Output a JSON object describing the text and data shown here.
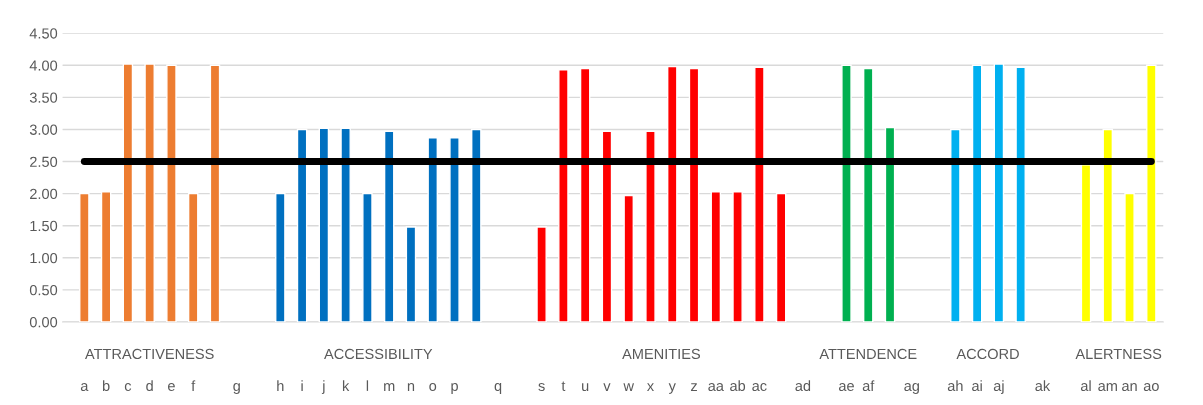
{
  "chart_data": {
    "type": "bar",
    "categories": [
      "a",
      "b",
      "c",
      "d",
      "e",
      "f",
      null,
      "g",
      null,
      "h",
      "i",
      "j",
      "k",
      "l",
      "m",
      "n",
      "o",
      "p",
      null,
      "q",
      null,
      "s",
      "t",
      "u",
      "v",
      "w",
      "x",
      "y",
      "z",
      "aa",
      "ab",
      "ac",
      null,
      "ad",
      null,
      "ae",
      "af",
      null,
      "ag",
      null,
      "ah",
      "ai",
      "aj",
      null,
      "ak",
      null,
      "al",
      "am",
      "an",
      "ao"
    ],
    "series": [
      {
        "name": "ATTRACTIVENESS",
        "color": "#ed7d31",
        "values": [
          2.0,
          2.03,
          4.02,
          4.02,
          4.0,
          2.0,
          4.0,
          null,
          null,
          null,
          null,
          null,
          null,
          null,
          null,
          null,
          null,
          null,
          null,
          null,
          null,
          null,
          null,
          null,
          null,
          null,
          null,
          null,
          null,
          null,
          null,
          null,
          null,
          null,
          null,
          null,
          null,
          null,
          null,
          null,
          null,
          null,
          null,
          null,
          null,
          null,
          null,
          null,
          null,
          null
        ]
      },
      {
        "name": "ACCESSIBILITY",
        "color": "#0070c0",
        "values": [
          null,
          null,
          null,
          null,
          null,
          null,
          null,
          null,
          null,
          2.0,
          3.0,
          3.02,
          3.02,
          2.0,
          2.97,
          1.48,
          2.87,
          2.87,
          3.0,
          null,
          null,
          null,
          null,
          null,
          null,
          null,
          null,
          null,
          null,
          null,
          null,
          null,
          null,
          null,
          null,
          null,
          null,
          null,
          null,
          null,
          null,
          null,
          null,
          null,
          null,
          null,
          null,
          null,
          null,
          null
        ]
      },
      {
        "name": "AMENITIES",
        "color": "#ff0000",
        "values": [
          null,
          null,
          null,
          null,
          null,
          null,
          null,
          null,
          null,
          null,
          null,
          null,
          null,
          null,
          null,
          null,
          null,
          null,
          null,
          null,
          null,
          1.48,
          3.93,
          3.95,
          2.97,
          1.97,
          2.97,
          3.98,
          3.95,
          2.03,
          2.03,
          3.97,
          2.0,
          null,
          null,
          null,
          null,
          null,
          null,
          null,
          null,
          null,
          null,
          null,
          null,
          null,
          null,
          null,
          null,
          null
        ]
      },
      {
        "name": "ATTENDENCE",
        "color": "#00b050",
        "values": [
          null,
          null,
          null,
          null,
          null,
          null,
          null,
          null,
          null,
          null,
          null,
          null,
          null,
          null,
          null,
          null,
          null,
          null,
          null,
          null,
          null,
          null,
          null,
          null,
          null,
          null,
          null,
          null,
          null,
          null,
          null,
          null,
          null,
          null,
          null,
          4.0,
          3.95,
          3.03,
          null,
          null,
          null,
          null,
          null,
          null,
          null,
          null,
          null,
          null,
          null,
          null
        ]
      },
      {
        "name": "ACCORD",
        "color": "#00b0f0",
        "values": [
          null,
          null,
          null,
          null,
          null,
          null,
          null,
          null,
          null,
          null,
          null,
          null,
          null,
          null,
          null,
          null,
          null,
          null,
          null,
          null,
          null,
          null,
          null,
          null,
          null,
          null,
          null,
          null,
          null,
          null,
          null,
          null,
          null,
          null,
          null,
          null,
          null,
          null,
          null,
          null,
          3.0,
          4.0,
          4.02,
          3.97,
          null,
          null,
          null,
          null,
          null,
          null
        ]
      },
      {
        "name": "ALERTNESS",
        "color": "#ffff00",
        "values": [
          null,
          null,
          null,
          null,
          null,
          null,
          null,
          null,
          null,
          null,
          null,
          null,
          null,
          null,
          null,
          null,
          null,
          null,
          null,
          null,
          null,
          null,
          null,
          null,
          null,
          null,
          null,
          null,
          null,
          null,
          null,
          null,
          null,
          null,
          null,
          null,
          null,
          null,
          null,
          null,
          null,
          null,
          null,
          null,
          null,
          null,
          2.45,
          3.0,
          2.0,
          4.0
        ]
      }
    ],
    "ylim": [
      0,
      4.5
    ],
    "yticks": [
      {
        "value": 0,
        "label": "0.00"
      },
      {
        "value": 0.5,
        "label": "0.50"
      },
      {
        "value": 1,
        "label": "1.00"
      },
      {
        "value": 1.5,
        "label": "1.50"
      },
      {
        "value": 2,
        "label": "2.00"
      },
      {
        "value": 2.5,
        "label": "2.50"
      },
      {
        "value": 3,
        "label": "3.00"
      },
      {
        "value": 3.5,
        "label": "3.50"
      },
      {
        "value": 4,
        "label": "4.00"
      },
      {
        "value": 4.5,
        "label": "4.50"
      }
    ],
    "ref_lines": [
      {
        "axis": "y",
        "value": 2.5,
        "color": "#000000"
      }
    ],
    "grid": "y",
    "legend": false
  }
}
